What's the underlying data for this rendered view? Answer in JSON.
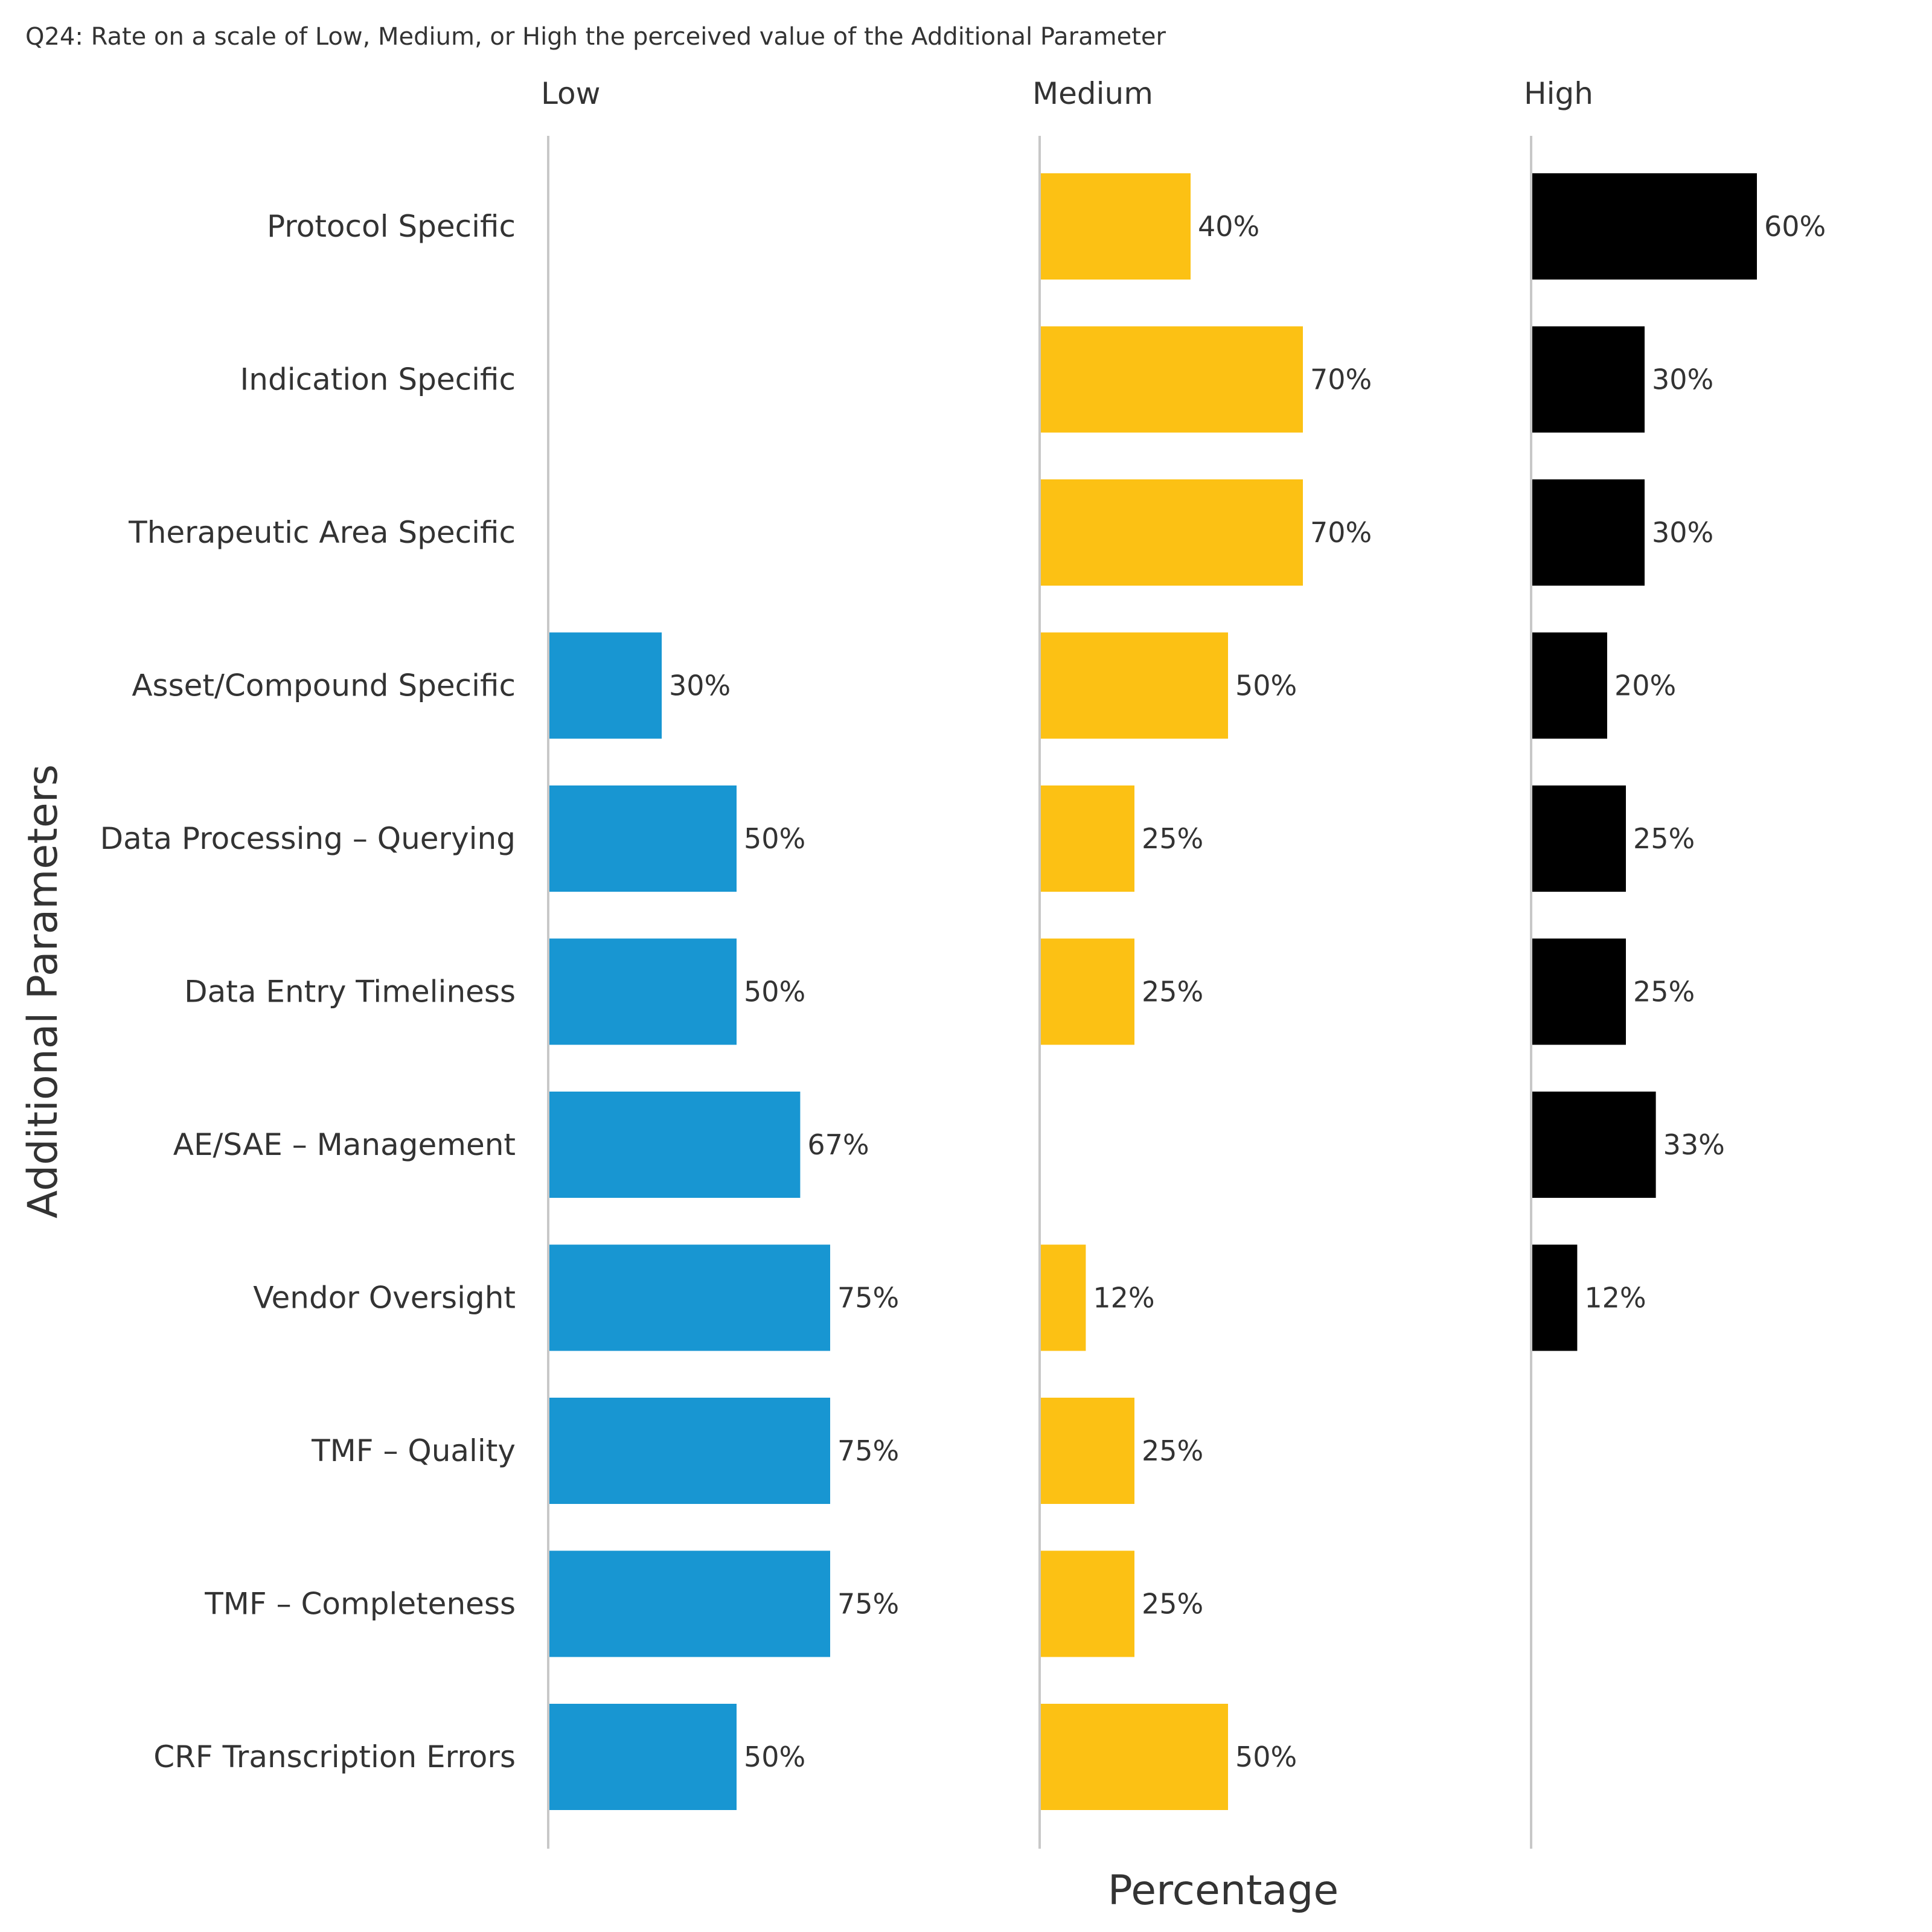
{
  "chart_data": {
    "type": "bar",
    "orientation": "horizontal",
    "title": "Q24: Rate on a scale of Low, Medium, or High the perceived value of the Additional Parameter",
    "xlabel": "Percentage",
    "ylabel": "Additional Parameters",
    "categories": [
      "Protocol Specific",
      "Indication Specific",
      "Therapeutic Area Specific",
      "Asset/Compound Specific",
      "Data Processing – Querying",
      "Data Entry Timeliness",
      "AE/SAE – Management",
      "Vendor Oversight",
      "TMF – Quality",
      "TMF – Completeness",
      "CRF Transcription Errors"
    ],
    "series": [
      {
        "name": "Low",
        "color": "#1896d2",
        "values": [
          null,
          null,
          null,
          30,
          50,
          50,
          67,
          75,
          75,
          75,
          50
        ]
      },
      {
        "name": "Medium",
        "color": "#fcc114",
        "values": [
          40,
          70,
          70,
          50,
          25,
          25,
          null,
          12,
          25,
          25,
          50
        ]
      },
      {
        "name": "High",
        "color": "#000000",
        "values": [
          60,
          30,
          30,
          20,
          25,
          25,
          33,
          12,
          null,
          null,
          null
        ]
      }
    ],
    "value_suffix": "%",
    "grid": false,
    "layout": "faceted-columns"
  }
}
